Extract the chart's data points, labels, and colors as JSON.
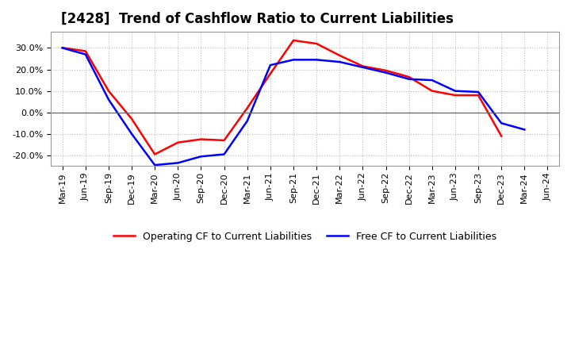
{
  "title": "[2428]  Trend of Cashflow Ratio to Current Liabilities",
  "x_labels": [
    "Mar-19",
    "Jun-19",
    "Sep-19",
    "Dec-19",
    "Mar-20",
    "Jun-20",
    "Sep-20",
    "Dec-20",
    "Mar-21",
    "Jun-21",
    "Sep-21",
    "Dec-21",
    "Mar-22",
    "Jun-22",
    "Sep-22",
    "Dec-22",
    "Mar-23",
    "Jun-23",
    "Sep-23",
    "Dec-23",
    "Mar-24",
    "Jun-24"
  ],
  "operating_cf": [
    0.301,
    0.285,
    0.1,
    -0.03,
    -0.195,
    -0.14,
    -0.125,
    -0.13,
    0.02,
    0.18,
    0.335,
    0.32,
    0.265,
    0.215,
    0.195,
    0.165,
    0.1,
    0.08,
    0.08,
    -0.11,
    null,
    null
  ],
  "free_cf": [
    0.3,
    0.27,
    0.06,
    -0.1,
    -0.245,
    -0.235,
    -0.205,
    -0.195,
    -0.04,
    0.22,
    0.245,
    0.245,
    0.235,
    0.21,
    0.185,
    0.155,
    0.15,
    0.1,
    0.095,
    -0.05,
    -0.08,
    null
  ],
  "ylim": [
    -0.25,
    0.375
  ],
  "yticks": [
    -0.2,
    -0.1,
    0.0,
    0.1,
    0.2,
    0.3
  ],
  "operating_color": "#ff0000",
  "free_color": "#0000ff",
  "bg_color": "#ffffff",
  "plot_bg_color": "#ffffff",
  "grid_color": "#bbbbbb",
  "legend_operating": "Operating CF to Current Liabilities",
  "legend_free": "Free CF to Current Liabilities",
  "title_fontsize": 12,
  "tick_fontsize": 8
}
